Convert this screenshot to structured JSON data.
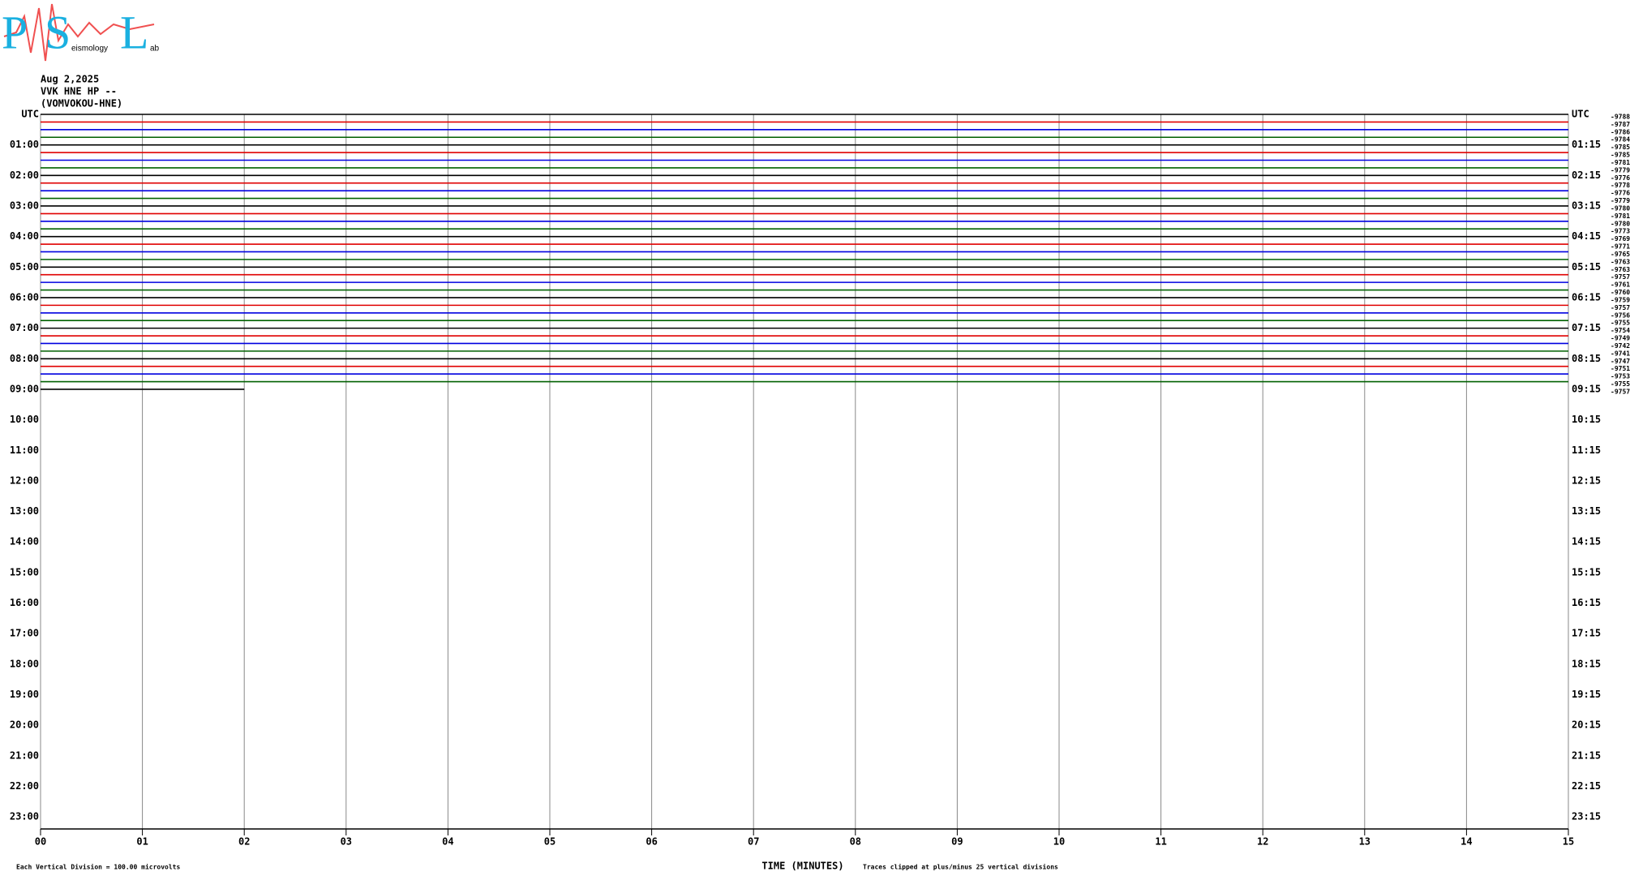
{
  "logo": {
    "letters": [
      "P",
      "S",
      "L"
    ],
    "words": [
      "eismology",
      "ab"
    ]
  },
  "header": {
    "date": "Aug 2,2025",
    "station": "VVK HNE HP --",
    "channel": "(VOMVOKOU-HNE)"
  },
  "chart_data": {
    "type": "helicorder",
    "left_labels": [
      "UTC",
      "01:00",
      "02:00",
      "03:00",
      "04:00",
      "05:00",
      "06:00",
      "07:00",
      "08:00",
      "09:00",
      "10:00",
      "11:00",
      "12:00",
      "13:00",
      "14:00",
      "15:00",
      "16:00",
      "17:00",
      "18:00",
      "19:00",
      "20:00",
      "21:00",
      "22:00",
      "23:00"
    ],
    "right_labels": [
      "UTC",
      "01:15",
      "02:15",
      "03:15",
      "04:15",
      "05:15",
      "06:15",
      "07:15",
      "08:15",
      "09:15",
      "10:15",
      "11:15",
      "12:15",
      "13:15",
      "14:15",
      "15:15",
      "16:15",
      "17:15",
      "18:15",
      "19:15",
      "20:15",
      "21:15",
      "22:15",
      "23:15"
    ],
    "offsets": [
      "-9788",
      "-9787",
      "-9786",
      "-9784",
      "-9785",
      "-9785",
      "-9781",
      "-9779",
      "-9776",
      "-9778",
      "-9776",
      "-9779",
      "-9780",
      "-9781",
      "-9780",
      "-9773",
      "-9769",
      "-9771",
      "-9765",
      "-9763",
      "-9763",
      "-9757",
      "-9761",
      "-9760",
      "-9759",
      "-9757",
      "-9756",
      "-9755",
      "-9754",
      "-9749",
      "-9742",
      "-9741",
      "-9747",
      "-9751",
      "-9753",
      "-9755",
      "-9757"
    ],
    "trace_colors": [
      "#000000",
      "#e00000",
      "#0000e0",
      "#006000"
    ],
    "last_trace_end": 2,
    "xlim": [
      0,
      15
    ],
    "xticks": [
      {
        "value": 0,
        "label": "00"
      },
      {
        "value": 1,
        "label": "01"
      },
      {
        "value": 2,
        "label": "02"
      },
      {
        "value": 3,
        "label": "03"
      },
      {
        "value": 4,
        "label": "04"
      },
      {
        "value": 5,
        "label": "05"
      },
      {
        "value": 6,
        "label": "06"
      },
      {
        "value": 7,
        "label": "07"
      },
      {
        "value": 8,
        "label": "08"
      },
      {
        "value": 9,
        "label": "09"
      },
      10,
      11,
      12,
      13,
      14,
      15
    ],
    "x_label": "TIME (MINUTES)",
    "footer_left": "Each Vertical Division =  100.00 microvolts",
    "footer_right": "Traces clipped at plus/minus 25 vertical divisions"
  }
}
